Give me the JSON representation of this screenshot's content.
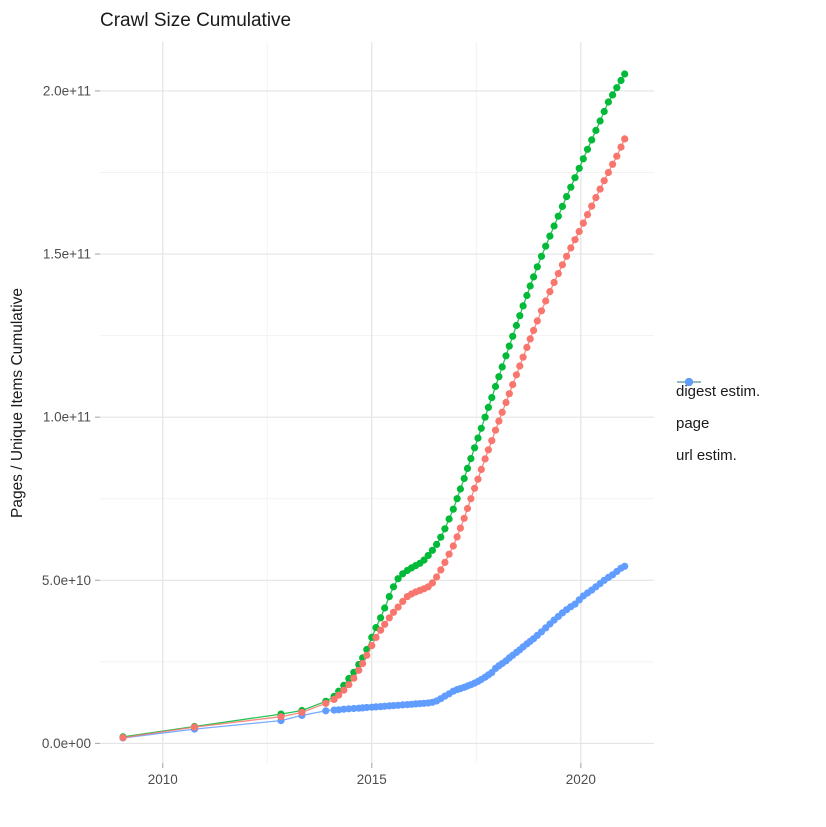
{
  "title": "Crawl Size Cumulative",
  "axes": {
    "y_label": "Pages / Unique Items Cumulative",
    "x_ticks": [
      {
        "value": 2010,
        "label": "2010"
      },
      {
        "value": 2015,
        "label": "2015"
      },
      {
        "value": 2020,
        "label": "2020"
      }
    ],
    "x_minor": [
      2012.5,
      2017.5
    ],
    "y_ticks": [
      {
        "value": 0,
        "label": "0.0e+00"
      },
      {
        "value": 50,
        "label": "5.0e+10"
      },
      {
        "value": 100,
        "label": "1.0e+11"
      },
      {
        "value": 150,
        "label": "1.5e+11"
      },
      {
        "value": 200,
        "label": "2.0e+11"
      }
    ],
    "y_minor": [
      25,
      75,
      125,
      175
    ]
  },
  "legend": {
    "items": [
      {
        "label": "digest estim.",
        "color": "#F8766D"
      },
      {
        "label": "page",
        "color": "#00BA38"
      },
      {
        "label": "url estim.",
        "color": "#619CFF"
      }
    ]
  },
  "colors": {
    "grid_major": "#e4e4e4",
    "grid_minor": "#f2f2f2",
    "tick": "#b0b0b0",
    "tick_label": "#4d4d4d",
    "title": "#1a1a1a"
  },
  "chart_data": {
    "type": "line",
    "title": "Crawl Size Cumulative",
    "xlabel": "",
    "ylabel": "Pages / Unique Items Cumulative",
    "y_unit": "billions (1e9) of pages / unique items",
    "x_domain": [
      2008.5,
      2021.75
    ],
    "y_domain": [
      -6,
      215
    ],
    "grid": true,
    "legend_position": "right",
    "x": [
      2009.05,
      2010.76,
      2012.83,
      2013.33,
      2013.9,
      2014.1,
      2014.21,
      2014.33,
      2014.45,
      2014.57,
      2014.69,
      2014.78,
      2014.88,
      2015.0,
      2015.1,
      2015.21,
      2015.31,
      2015.42,
      2015.52,
      2015.63,
      2015.74,
      2015.85,
      2015.95,
      2016.05,
      2016.15,
      2016.25,
      2016.35,
      2016.45,
      2016.55,
      2016.65,
      2016.75,
      2016.85,
      2016.95,
      2017.04,
      2017.12,
      2017.21,
      2017.29,
      2017.37,
      2017.46,
      2017.54,
      2017.62,
      2017.71,
      2017.79,
      2017.87,
      2017.96,
      2018.04,
      2018.12,
      2018.21,
      2018.29,
      2018.37,
      2018.46,
      2018.54,
      2018.62,
      2018.71,
      2018.79,
      2018.87,
      2018.96,
      2019.06,
      2019.16,
      2019.26,
      2019.36,
      2019.46,
      2019.56,
      2019.66,
      2019.76,
      2019.86,
      2019.96,
      2020.06,
      2020.16,
      2020.26,
      2020.36,
      2020.46,
      2020.56,
      2020.66,
      2020.76,
      2020.86,
      2020.96,
      2021.05
    ],
    "series": [
      {
        "name": "digest estim.",
        "color": "#F8766D",
        "values": [
          1.8,
          5.0,
          8.2,
          9.5,
          12.3,
          13.5,
          14.8,
          16.3,
          18.0,
          20.0,
          22.4,
          24.5,
          27.0,
          30.0,
          32.5,
          34.7,
          36.5,
          38.5,
          40.2,
          41.8,
          43.5,
          45.0,
          45.8,
          46.4,
          46.9,
          47.4,
          48.0,
          49.2,
          51.0,
          53.2,
          55.5,
          58.0,
          60.5,
          63.3,
          66.0,
          69.0,
          72.0,
          75.0,
          78.2,
          81.0,
          84.0,
          87.2,
          90.0,
          92.8,
          96.0,
          98.8,
          101.5,
          104.5,
          107.2,
          110.0,
          113.0,
          115.7,
          118.4,
          121.4,
          124.0,
          126.6,
          129.5,
          132.6,
          135.6,
          138.5,
          141.3,
          144.0,
          146.7,
          149.3,
          151.9,
          154.4,
          156.9,
          159.5,
          162.1,
          164.7,
          167.3,
          169.9,
          172.5,
          175.0,
          177.5,
          180.0,
          182.8,
          185.3
        ]
      },
      {
        "name": "page",
        "color": "#00BA38",
        "values": [
          2.0,
          5.2,
          9.0,
          10.1,
          12.9,
          14.4,
          16.0,
          17.8,
          19.9,
          21.8,
          24.2,
          26.2,
          28.8,
          32.5,
          35.5,
          38.5,
          41.5,
          45.0,
          48.0,
          50.5,
          52.0,
          53.0,
          53.8,
          54.5,
          55.2,
          56.2,
          57.6,
          59.2,
          61.0,
          63.2,
          65.8,
          68.8,
          71.8,
          75.0,
          78.0,
          81.2,
          84.3,
          87.3,
          90.6,
          93.6,
          96.6,
          100.0,
          103.0,
          106.0,
          109.4,
          112.4,
          115.4,
          118.8,
          121.8,
          124.8,
          128.1,
          131.1,
          134.1,
          137.3,
          140.2,
          143.0,
          146.1,
          149.3,
          152.4,
          155.5,
          158.6,
          161.6,
          164.6,
          167.6,
          170.5,
          173.4,
          176.3,
          179.2,
          182.1,
          185.0,
          187.9,
          190.8,
          193.7,
          196.6,
          198.8,
          201.0,
          203.2,
          205.2
        ]
      },
      {
        "name": "url estim.",
        "color": "#619CFF",
        "values": [
          1.7,
          4.4,
          7.0,
          8.6,
          10.0,
          10.2,
          10.3,
          10.5,
          10.6,
          10.7,
          10.8,
          10.9,
          11.0,
          11.1,
          11.2,
          11.3,
          11.4,
          11.5,
          11.6,
          11.7,
          11.8,
          11.9,
          12.0,
          12.1,
          12.2,
          12.3,
          12.4,
          12.6,
          13.0,
          13.7,
          14.5,
          15.2,
          16.0,
          16.5,
          16.8,
          17.2,
          17.6,
          18.0,
          18.5,
          19.0,
          19.6,
          20.3,
          21.0,
          21.7,
          23.0,
          23.8,
          24.5,
          25.3,
          26.2,
          27.0,
          27.9,
          28.7,
          29.6,
          30.5,
          31.3,
          32.1,
          33.1,
          34.2,
          35.4,
          36.6,
          37.8,
          38.9,
          40.0,
          41.0,
          41.9,
          42.7,
          44.0,
          45.2,
          46.1,
          47.0,
          48.0,
          49.0,
          50.0,
          50.9,
          51.7,
          52.7,
          53.7,
          54.3
        ]
      }
    ],
    "draw_order": [
      2,
      1,
      0
    ]
  }
}
